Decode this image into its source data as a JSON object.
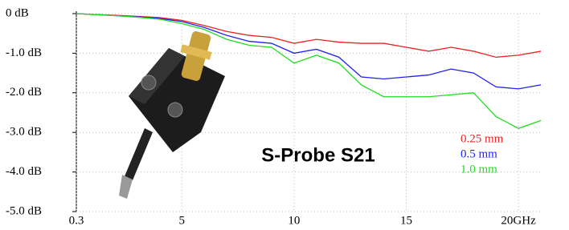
{
  "chart_data": {
    "type": "line",
    "title": "S-Probe S21",
    "x": [
      0.3,
      1,
      2,
      3,
      4,
      5,
      6,
      7,
      8,
      9,
      10,
      11,
      12,
      13,
      14,
      15,
      16,
      17,
      18,
      19,
      20,
      21
    ],
    "series": [
      {
        "name": "0.25 mm",
        "color": "#ee2222",
        "values": [
          0,
          -0.02,
          -0.04,
          -0.07,
          -0.1,
          -0.17,
          -0.3,
          -0.45,
          -0.55,
          -0.6,
          -0.75,
          -0.65,
          -0.72,
          -0.75,
          -0.75,
          -0.85,
          -0.95,
          -0.85,
          -0.95,
          -1.1,
          -1.05,
          -0.95
        ]
      },
      {
        "name": "0.5 mm",
        "color": "#2222ee",
        "values": [
          0,
          -0.02,
          -0.05,
          -0.08,
          -0.12,
          -0.2,
          -0.35,
          -0.55,
          -0.7,
          -0.75,
          -1.0,
          -0.9,
          -1.1,
          -1.6,
          -1.65,
          -1.6,
          -1.55,
          -1.4,
          -1.5,
          -1.85,
          -1.9,
          -1.8
        ]
      },
      {
        "name": "1.0 mm",
        "color": "#22dd22",
        "values": [
          0,
          -0.02,
          -0.05,
          -0.09,
          -0.14,
          -0.25,
          -0.4,
          -0.65,
          -0.8,
          -0.85,
          -1.25,
          -1.05,
          -1.25,
          -1.8,
          -2.1,
          -2.1,
          -2.1,
          -2.05,
          -2.0,
          -2.6,
          -2.9,
          -2.7
        ]
      }
    ],
    "xlim": [
      0.3,
      21
    ],
    "xticks": [
      0.3,
      5,
      10,
      15,
      {
        "value": 20,
        "label": "20GHz"
      }
    ],
    "ylim": [
      -5,
      0
    ],
    "yticks": [
      {
        "value": 0,
        "label": "0 dB"
      },
      {
        "value": -1,
        "label": "-1.0 dB"
      },
      {
        "value": -2,
        "label": "-2.0 dB"
      },
      {
        "value": -3,
        "label": "-3.0 dB"
      },
      {
        "value": -4,
        "label": "-4.0 dB"
      },
      {
        "value": -5,
        "label": "-5.0 dB"
      }
    ],
    "grid": true
  }
}
